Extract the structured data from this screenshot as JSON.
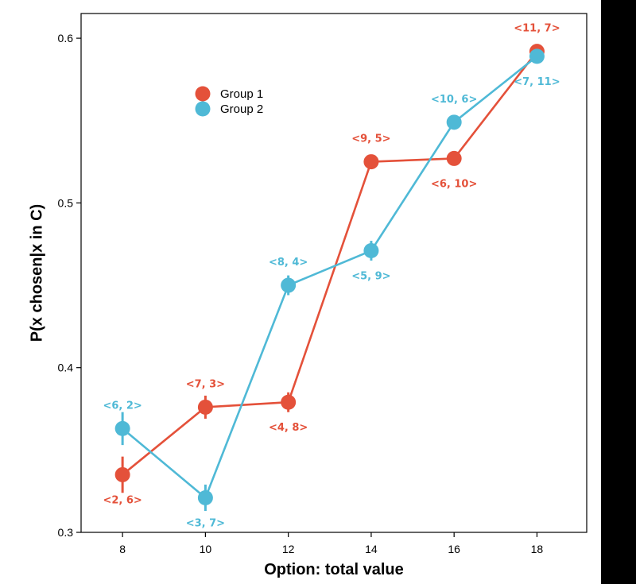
{
  "chart_data": {
    "type": "line",
    "xlabel": "Option: total value",
    "ylabel": "P(x chosen|x in C)",
    "xlim": [
      7,
      19.2
    ],
    "ylim": [
      0.3,
      0.615
    ],
    "xticks": [
      8,
      10,
      12,
      14,
      16,
      18
    ],
    "yticks": [
      0.3,
      0.4,
      0.5,
      0.6
    ],
    "ytick_labels": [
      "0.3",
      "0.4",
      "0.5",
      "0.6"
    ],
    "grid": false,
    "legend_position": "top-left",
    "series": [
      {
        "name": "Group 1",
        "color": "#E4513A",
        "points": [
          {
            "x": 8,
            "y": 0.335,
            "err": 0.011,
            "label": "<2, 6>",
            "label_pos": "below"
          },
          {
            "x": 10,
            "y": 0.376,
            "err": 0.007,
            "label": "<7, 3>",
            "label_pos": "above"
          },
          {
            "x": 12,
            "y": 0.379,
            "err": 0.006,
            "label": "<4, 8>",
            "label_pos": "below"
          },
          {
            "x": 14,
            "y": 0.525,
            "err": 0.003,
            "label": "<9, 5>",
            "label_pos": "above"
          },
          {
            "x": 16,
            "y": 0.527,
            "err": 0.003,
            "label": "<6, 10>",
            "label_pos": "below"
          },
          {
            "x": 18,
            "y": 0.592,
            "err": 0.003,
            "label": "<11, 7>",
            "label_pos": "above"
          }
        ]
      },
      {
        "name": "Group 2",
        "color": "#4FB9D6",
        "points": [
          {
            "x": 8,
            "y": 0.363,
            "err": 0.01,
            "label": "<6, 2>",
            "label_pos": "above"
          },
          {
            "x": 10,
            "y": 0.321,
            "err": 0.008,
            "label": "<3, 7>",
            "label_pos": "below"
          },
          {
            "x": 12,
            "y": 0.45,
            "err": 0.006,
            "label": "<8, 4>",
            "label_pos": "above"
          },
          {
            "x": 14,
            "y": 0.471,
            "err": 0.006,
            "label": "<5, 9>",
            "label_pos": "below"
          },
          {
            "x": 16,
            "y": 0.549,
            "err": 0.003,
            "label": "<10, 6>",
            "label_pos": "above"
          },
          {
            "x": 18,
            "y": 0.589,
            "err": 0.003,
            "label": "<7, 11>",
            "label_pos": "below"
          }
        ]
      }
    ]
  }
}
